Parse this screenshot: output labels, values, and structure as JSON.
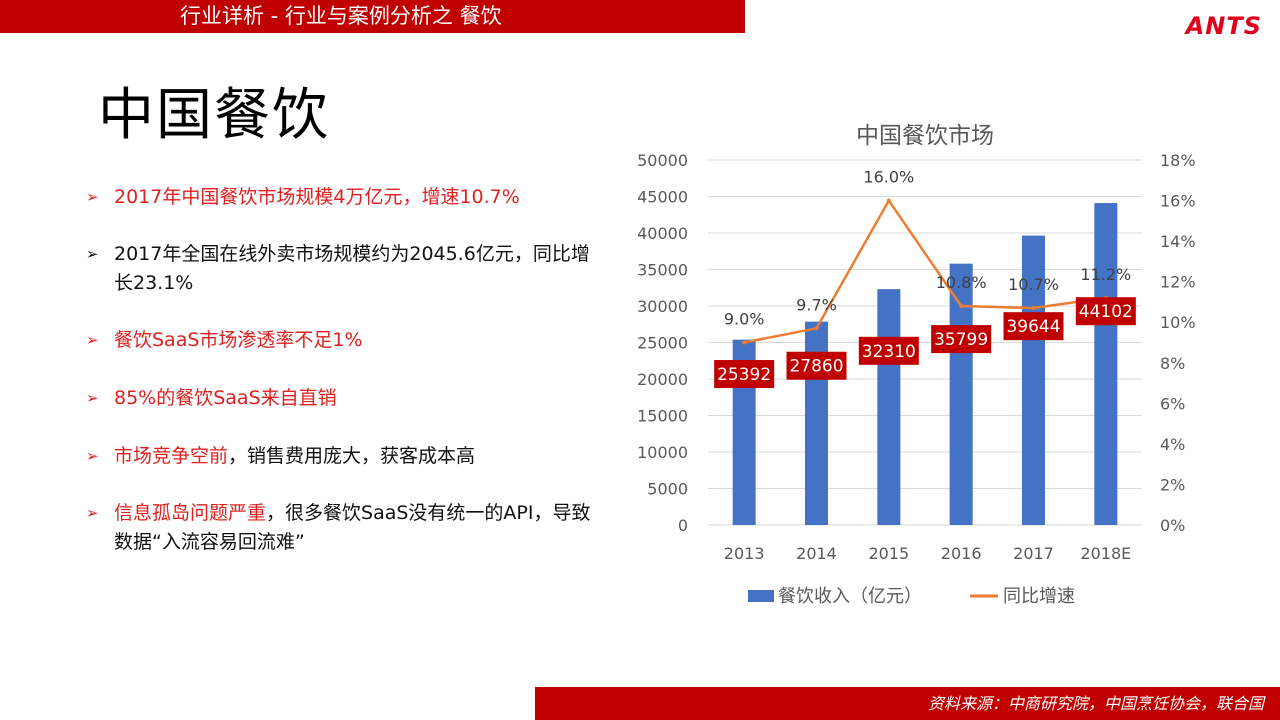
{
  "header": {
    "banner": "行业详析 - 行业与案例分析之 餐饮",
    "logo": "ANTS"
  },
  "page_title": "中国餐饮",
  "bullets": [
    {
      "prefix": "",
      "text": "2017年中国餐饮市场规模4万亿元，增速10.7%",
      "suffix": "",
      "color": "red"
    },
    {
      "prefix": "",
      "text": "2017年全国在线外卖市场规模约为2045.6亿元，同比增长23.1%",
      "suffix": "",
      "color": "black"
    },
    {
      "prefix": "",
      "text": "餐饮SaaS市场渗透率不足1%",
      "suffix": "",
      "color": "red"
    },
    {
      "prefix": "",
      "text": "85%的餐饮SaaS来自直销",
      "suffix": "",
      "color": "red"
    },
    {
      "prefix": "市场竞争空前",
      "text": "，销售费用庞大，获客成本高",
      "suffix": "",
      "color": "mixed"
    },
    {
      "prefix": "信息孤岛问题严重",
      "text": "，很多餐饮SaaS没有统一的API，导致数据“入流容易回流难”",
      "suffix": "",
      "color": "mixed"
    }
  ],
  "chart_data": {
    "type": "bar",
    "title": "中国餐饮市场",
    "categories": [
      "2013",
      "2014",
      "2015",
      "2016",
      "2017",
      "2018E"
    ],
    "series": [
      {
        "name": "餐饮收入（亿元）",
        "type": "bar",
        "axis": "left",
        "color": "#4472c4",
        "values": [
          25392,
          27860,
          32310,
          35799,
          39644,
          44102
        ]
      },
      {
        "name": "同比增速",
        "type": "line",
        "axis": "right",
        "color": "#ed7d31",
        "values": [
          9.0,
          9.7,
          16.0,
          10.8,
          10.7,
          11.2
        ],
        "labels": [
          "9.0%",
          "9.7%",
          "16.0%",
          "10.8%",
          "10.7%",
          "11.2%"
        ]
      }
    ],
    "y_left": {
      "min": 0,
      "max": 50000,
      "ticks": [
        "0",
        "5000",
        "10000",
        "15000",
        "20000",
        "25000",
        "30000",
        "35000",
        "40000",
        "45000",
        "50000"
      ]
    },
    "y_right": {
      "min": 0,
      "max": 18,
      "ticks": [
        "0%",
        "2%",
        "4%",
        "6%",
        "8%",
        "10%",
        "12%",
        "14%",
        "16%",
        "18%"
      ]
    },
    "grid": true,
    "legend": "bottom",
    "data_label_bg": "#c00000"
  },
  "footer": {
    "source": "资料来源：中商研究院，中国烹饪协会，联合国"
  }
}
